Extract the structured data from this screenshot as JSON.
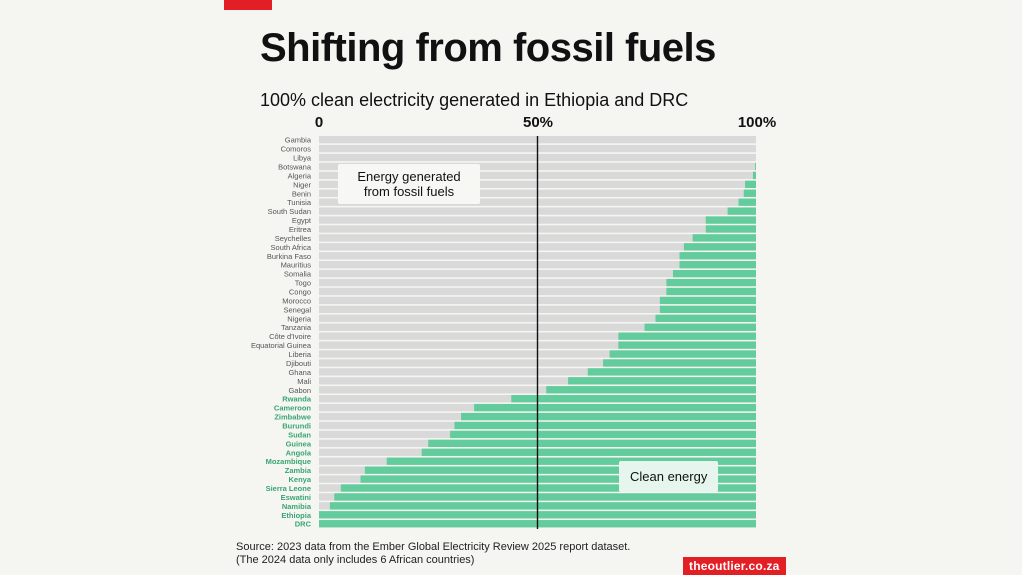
{
  "title": "Shifting from fossil fuels",
  "subtitle": "100% clean electricity generated in Ethiopia and DRC",
  "source_line1": "Source: 2023 data from the Ember Global Electricity Review 2025 report dataset.",
  "source_line2": "(The 2024 data only includes 6 African countries)",
  "brand": "theoutlier.co.za",
  "chart_data": {
    "type": "bar",
    "orientation": "horizontal",
    "stacked": true,
    "title": "Shifting from fossil fuels",
    "subtitle": "100% clean electricity generated in Ethiopia and DRC",
    "xlim": [
      0,
      100
    ],
    "x_ticks": [
      "0",
      "50%",
      "100%"
    ],
    "reference_line": 50,
    "annotations": [
      "Energy generated from fossil fuels",
      "Clean energy"
    ],
    "colors": {
      "fossil": "#d9d9d9",
      "clean": "#62cc9c",
      "highlight_label": "#3aa572",
      "label": "#555555",
      "reference": "#111111"
    },
    "categories": [
      "Gambia",
      "Comoros",
      "Libya",
      "Botswana",
      "Algeria",
      "Niger",
      "Benin",
      "Tunisia",
      "South Sudan",
      "Egypt",
      "Eritrea",
      "Seychelles",
      "South Africa",
      "Burkina Faso",
      "Mauritius",
      "Somalia",
      "Togo",
      "Congo",
      "Morocco",
      "Senegal",
      "Nigeria",
      "Tanzania",
      "Côte d'Ivoire",
      "Equatorial Guinea",
      "Liberia",
      "Djibouti",
      "Ghana",
      "Mali",
      "Gabon",
      "Rwanda",
      "Cameroon",
      "Zimbabwe",
      "Burundi",
      "Sudan",
      "Guinea",
      "Angola",
      "Mozambique",
      "Zambia",
      "Kenya",
      "Sierra Leone",
      "Eswatini",
      "Namibia",
      "Ethiopia",
      "DRC"
    ],
    "clean_share": [
      0,
      0,
      0,
      0.2,
      0.7,
      2.5,
      2.8,
      4,
      6.5,
      11.5,
      11.5,
      14.5,
      16.5,
      17.5,
      17.5,
      19,
      20.5,
      20.5,
      22,
      22,
      23,
      25.5,
      31.5,
      31.5,
      33.5,
      35,
      38.5,
      43,
      48,
      56,
      64.5,
      67.5,
      69,
      70,
      75,
      76.5,
      84.5,
      89.5,
      90.5,
      95,
      96.5,
      97.5,
      100,
      100
    ],
    "highlighted_from": "Rwanda"
  }
}
